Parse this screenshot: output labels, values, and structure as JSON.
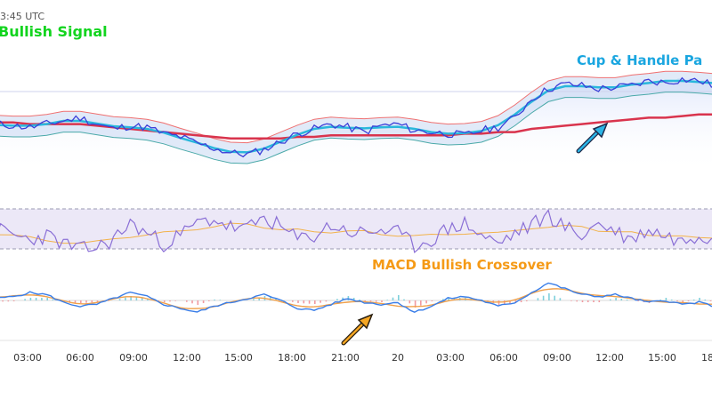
{
  "header": {
    "time_fragment": "3:45 UTC"
  },
  "annotations": {
    "bullish_signal": "Bullish Signal",
    "cup_handle": "Cup & Handle Pa",
    "macd_crossover": "MACD Bullish Crossover"
  },
  "colors": {
    "price": "#3b3fd8",
    "ema_fast": "#2ab7dc",
    "ema_slow": "#d9344d",
    "band_upper": "#ef7070",
    "band_lower": "#4aa9a9",
    "band_fill": "#dfe6fb",
    "rsi": "#8a6fd6",
    "rsi_signal": "#f2b24a",
    "rsi_zone": "#ece8f7",
    "macd": "#3a7ee8",
    "macd_signal": "#f0a04a",
    "hist_up": "#7fd0dc",
    "hist_down": "#f09aa0",
    "bullish_text": "#12d41e",
    "cup_text": "#1aa6e0",
    "macd_text": "#f59a16"
  },
  "chart_data": {
    "type": "line",
    "x_ticks": [
      "03:00",
      "06:00",
      "09:00",
      "12:00",
      "15:00",
      "18:00",
      "21:00",
      "20",
      "03:00",
      "06:00",
      "09:00",
      "12:00",
      "15:00",
      "18"
    ],
    "series": [
      {
        "values": [
          58,
          57,
          56,
          58,
          60,
          62,
          58,
          55,
          57,
          56,
          52,
          50,
          46,
          43,
          40,
          39,
          42,
          47,
          52,
          55,
          58,
          56,
          53,
          57,
          58,
          54,
          53,
          52,
          51,
          54,
          56,
          62,
          74,
          80,
          83,
          82,
          80,
          81,
          82,
          85,
          84,
          86,
          85,
          82
        ]
      },
      {
        "values": [
          59,
          59,
          58,
          58,
          58,
          58,
          57,
          56,
          55,
          54,
          53,
          52,
          51,
          50,
          49,
          49,
          49,
          49,
          50,
          50,
          51,
          51,
          51,
          51,
          51,
          51,
          51,
          51,
          52,
          52,
          53,
          53,
          55,
          56,
          57,
          58,
          59,
          60,
          61,
          62,
          62,
          63,
          64,
          64
        ]
      },
      {
        "values": [
          55,
          52,
          50,
          52,
          48,
          45,
          46,
          50,
          58,
          53,
          48,
          52,
          58,
          60,
          56,
          55,
          61,
          56,
          50,
          52,
          57,
          54,
          53,
          55,
          53,
          47,
          50,
          55,
          58,
          52,
          48,
          53,
          57,
          62,
          56,
          52,
          58,
          54,
          50,
          55,
          52,
          49,
          53,
          50
        ]
      },
      {
        "values": [
          0.1,
          0.2,
          0.4,
          0.3,
          -0.1,
          -0.3,
          -0.2,
          0.1,
          0.4,
          0.2,
          -0.2,
          -0.4,
          -0.6,
          -0.3,
          -0.1,
          0.1,
          0.3,
          0.0,
          -0.4,
          -0.5,
          -0.2,
          0.1,
          -0.1,
          -0.2,
          -0.1,
          -0.6,
          -0.3,
          0.1,
          0.2,
          0.0,
          -0.3,
          -0.1,
          0.4,
          0.9,
          0.6,
          0.3,
          0.2,
          0.3,
          0.1,
          -0.1,
          0.0,
          -0.2,
          -0.1,
          -0.3
        ]
      }
    ]
  }
}
